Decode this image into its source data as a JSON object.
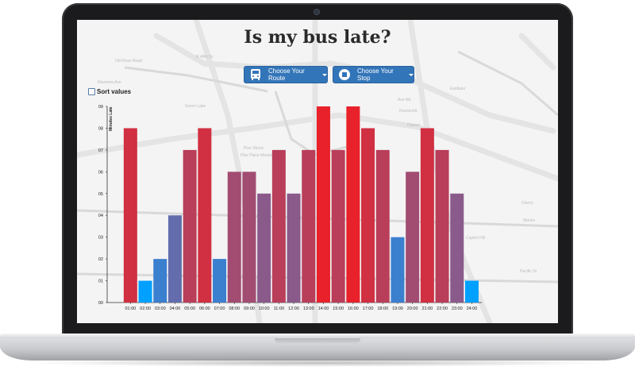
{
  "page": {
    "title": "Is my bus late?",
    "route_button": "Choose Your Route",
    "stop_button": "Choose Your Stop",
    "sort_label": "Sort values",
    "sort_checked": false
  },
  "colors": {
    "late_red": "#e8212a",
    "mid_purple": "#8a5a8a",
    "early_blue": "#3b7fcf",
    "button_blue": "#3375b9"
  },
  "icons": {
    "route": "bus-icon",
    "stop": "stop-icon"
  },
  "map_labels": [
    "N 49th St",
    "Old Ross Road",
    "Ravenna Ave",
    "Green Lake",
    "Ave NE",
    "Roosevelt",
    "Dravus",
    "Eastlake",
    "Capitol Hill",
    "Pine Street",
    "Pike Place Market",
    "Marion",
    "Cherry",
    "Pacific St"
  ],
  "chart_data": {
    "type": "bar",
    "ylabel": "Minutes Late",
    "ylim": [
      0,
      9
    ],
    "yticks": [
      "00",
      "01",
      "02",
      "03",
      "04",
      "05",
      "06",
      "07",
      "08",
      "09"
    ],
    "categories": [
      "01:00",
      "02:00",
      "03:00",
      "04:00",
      "05:00",
      "06:00",
      "07:00",
      "08:00",
      "09:00",
      "10:00",
      "11:00",
      "12:00",
      "13:00",
      "14:00",
      "15:00",
      "16:00",
      "17:00",
      "18:00",
      "19:00",
      "20:00",
      "21:00",
      "22:00",
      "23:00",
      "24:00"
    ],
    "values": [
      8,
      1,
      2,
      4,
      7,
      8,
      2,
      6,
      6,
      5,
      7,
      5,
      7,
      9,
      7,
      9,
      8,
      7,
      3,
      6,
      8,
      7,
      5,
      1
    ],
    "grid": false,
    "legend": "none"
  }
}
